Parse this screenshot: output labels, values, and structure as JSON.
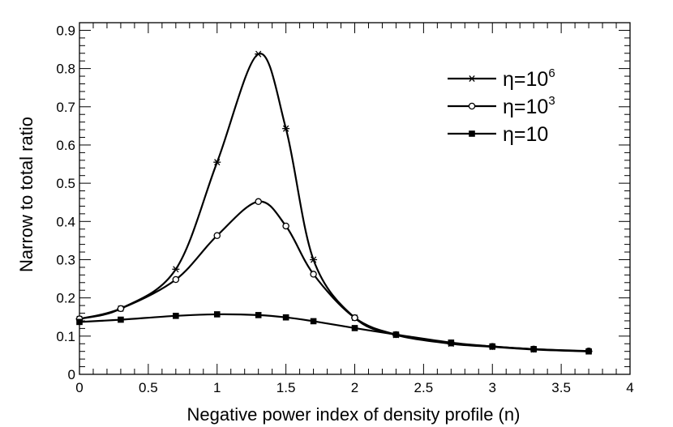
{
  "chart_data": {
    "type": "line",
    "title": "",
    "xlabel": "Negative power index of density profile (n)",
    "ylabel": "Narrow to total ratio",
    "xlim": [
      0,
      4
    ],
    "ylim": [
      0,
      0.92
    ],
    "x_ticks": [
      0,
      0.5,
      1,
      1.5,
      2,
      2.5,
      3,
      3.5,
      4
    ],
    "x_tick_labels": [
      "0",
      "0.5",
      "1",
      "1.5",
      "2",
      "2.5",
      "3",
      "3.5",
      "4"
    ],
    "y_ticks": [
      0,
      0.1,
      0.2,
      0.3,
      0.4,
      0.5,
      0.6,
      0.7,
      0.8,
      0.9
    ],
    "y_tick_labels": [
      "0",
      "0.1",
      "0.2",
      "0.3",
      "0.4",
      "0.5",
      "0.6",
      "0.7",
      "0.8",
      "0.9"
    ],
    "grid": false,
    "legend_position": "top-right",
    "series": [
      {
        "name": "η=10^6",
        "label_base": "η=10",
        "label_exp": "6",
        "marker": "star",
        "color": "#000000",
        "x": [
          0,
          0.3,
          0.7,
          1.0,
          1.3,
          1.5,
          1.7,
          2.0,
          2.3,
          2.7,
          3.0,
          3.3,
          3.7
        ],
        "y": [
          0.145,
          0.172,
          0.275,
          0.555,
          0.838,
          0.643,
          0.3,
          0.148,
          0.103,
          0.08,
          0.072,
          0.065,
          0.06
        ]
      },
      {
        "name": "η=10^3",
        "label_base": "η=10",
        "label_exp": "3",
        "marker": "circle",
        "color": "#000000",
        "x": [
          0,
          0.3,
          0.7,
          1.0,
          1.3,
          1.5,
          1.7,
          2.0,
          2.3,
          2.7,
          3.0,
          3.3,
          3.7
        ],
        "y": [
          0.145,
          0.172,
          0.248,
          0.363,
          0.452,
          0.388,
          0.262,
          0.148,
          0.104,
          0.082,
          0.073,
          0.066,
          0.061
        ]
      },
      {
        "name": "η=10",
        "label_base": "η=10",
        "label_exp": "",
        "marker": "square",
        "color": "#000000",
        "x": [
          0,
          0.3,
          0.7,
          1.0,
          1.3,
          1.5,
          1.7,
          2.0,
          2.3,
          2.7,
          3.0,
          3.3,
          3.7
        ],
        "y": [
          0.137,
          0.143,
          0.153,
          0.157,
          0.155,
          0.149,
          0.139,
          0.121,
          0.104,
          0.083,
          0.073,
          0.066,
          0.06
        ]
      }
    ]
  }
}
